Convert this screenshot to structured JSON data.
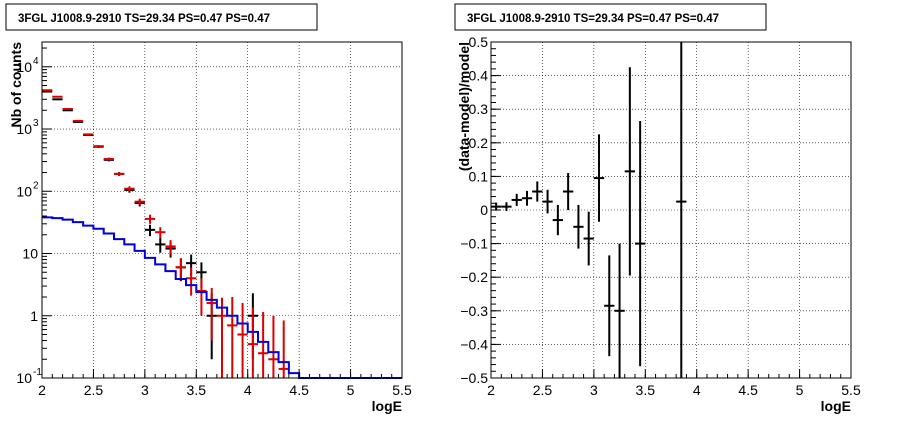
{
  "chart_data": [
    {
      "type": "histogram-errorbars",
      "title": "3FGL J1008.9-2910 TS=29.34 PS=0.47 PS=0.47",
      "xlabel": "logE",
      "ylabel": "Nb of counts",
      "xlim": [
        2,
        5.5
      ],
      "ylim": [
        0.1,
        25000
      ],
      "yscale": "log",
      "grid": true,
      "x_ticks": [
        "2",
        "2.5",
        "3",
        "3.5",
        "4",
        "4.5",
        "5",
        "5.5"
      ],
      "y_ticks": [
        {
          "value": 0.1,
          "label": "10",
          "exp": "-1"
        },
        {
          "value": 1,
          "label": "1",
          "exp": ""
        },
        {
          "value": 10,
          "label": "10",
          "exp": ""
        },
        {
          "value": 100,
          "label": "10",
          "exp": "2"
        },
        {
          "value": 1000,
          "label": "10",
          "exp": "3"
        },
        {
          "value": 10000,
          "label": "10",
          "exp": "4"
        }
      ],
      "bin_width": 0.1,
      "series": [
        {
          "color": "#000000",
          "style": "points",
          "x": [
            2.05,
            2.15,
            2.25,
            2.35,
            2.45,
            2.55,
            2.65,
            2.75,
            2.85,
            2.95,
            3.05,
            3.15,
            3.25,
            3.35,
            3.45,
            3.55,
            3.65,
            4.05
          ],
          "y": [
            4000,
            3000,
            2000,
            1300,
            800,
            520,
            320,
            190,
            105,
            65,
            24,
            14,
            12,
            6,
            7,
            5,
            1,
            1
          ],
          "err_lo": [
            60,
            55,
            45,
            36,
            28,
            22,
            18,
            14,
            10,
            8,
            5,
            3.7,
            3.4,
            2.4,
            2.6,
            2.2,
            0.8,
            0.8
          ],
          "err_hi": [
            60,
            55,
            45,
            36,
            28,
            22,
            18,
            14,
            10,
            8,
            5,
            3.7,
            3.4,
            2.4,
            2.6,
            2.2,
            1.3,
            1.3
          ]
        },
        {
          "color": "#dd0000",
          "style": "points",
          "x": [
            2.05,
            2.15,
            2.25,
            2.35,
            2.45,
            2.55,
            2.65,
            2.75,
            2.85,
            2.95,
            3.05,
            3.15,
            3.25,
            3.35,
            3.45,
            3.55,
            3.65,
            3.75,
            3.85,
            3.95,
            4.05,
            4.15,
            4.25,
            4.35
          ],
          "y": [
            4200,
            3300,
            2100,
            1350,
            820,
            530,
            330,
            190,
            110,
            68,
            36,
            22,
            13,
            6,
            4,
            2.5,
            1.6,
            1.0,
            0.7,
            0.5,
            0.35,
            0.25,
            0.2,
            0.14
          ],
          "err_lo": [
            60,
            55,
            45,
            36,
            28,
            22,
            18,
            14,
            10,
            8,
            6,
            4.5,
            3.4,
            2.3,
            1.9,
            1.5,
            1.2,
            0.95,
            0.69,
            0.49,
            0.34,
            0.24,
            0.19,
            0.13
          ],
          "err_hi": [
            60,
            55,
            45,
            36,
            28,
            22,
            18,
            14,
            10,
            8,
            6,
            4.5,
            3.4,
            2.3,
            1.9,
            1.5,
            1.2,
            0.95,
            1.3,
            1.1,
            1.0,
            0.9,
            0.8,
            0.7
          ]
        },
        {
          "color": "#0000dd",
          "style": "step",
          "edges": [
            2.0,
            2.1,
            2.2,
            2.3,
            2.4,
            2.5,
            2.6,
            2.7,
            2.8,
            2.9,
            3.0,
            3.1,
            3.2,
            3.3,
            3.4,
            3.5,
            3.6,
            3.7,
            3.8,
            3.9,
            4.0,
            4.1,
            4.2,
            4.3,
            4.4,
            4.5,
            4.6,
            5.5
          ],
          "y": [
            38,
            37,
            35,
            32,
            28,
            25,
            21,
            17,
            14,
            11,
            8.5,
            6.7,
            5.2,
            3.9,
            3.1,
            2.4,
            1.8,
            1.35,
            1.0,
            0.75,
            0.55,
            0.38,
            0.26,
            0.18,
            0.12,
            0.1,
            0.1
          ]
        }
      ]
    },
    {
      "type": "residuals-errorbars",
      "title": "3FGL J1008.9-2910 TS=29.34 PS=0.47 PS=0.47",
      "xlabel": "logE",
      "ylabel": "(data-model)/model",
      "xlim": [
        2,
        5.5
      ],
      "ylim": [
        -0.5,
        0.5
      ],
      "grid": true,
      "x_ticks": [
        "2",
        "2.5",
        "3",
        "3.5",
        "4",
        "4.5",
        "5",
        "5.5"
      ],
      "y_ticks": [
        "−0.5",
        "−0.4",
        "−0.3",
        "−0.2",
        "−0.1",
        "0",
        "0.1",
        "0.2",
        "0.3",
        "0.4",
        "0.5"
      ],
      "bin_width": 0.1,
      "series": [
        {
          "color": "#000000",
          "x": [
            2.05,
            2.15,
            2.25,
            2.35,
            2.45,
            2.55,
            2.65,
            2.75,
            2.85,
            2.95,
            3.05,
            3.15,
            3.25,
            3.35,
            3.45,
            3.85
          ],
          "y": [
            0.01,
            0.01,
            0.03,
            0.035,
            0.055,
            0.025,
            -0.03,
            0.055,
            -0.05,
            -0.085,
            0.095,
            -0.285,
            -0.3,
            0.115,
            -0.1,
            0.025
          ],
          "err": [
            0.012,
            0.013,
            0.018,
            0.022,
            0.03,
            0.035,
            0.045,
            0.055,
            0.065,
            0.08,
            0.13,
            0.15,
            0.2,
            0.31,
            0.365,
            0.9
          ]
        }
      ]
    }
  ]
}
